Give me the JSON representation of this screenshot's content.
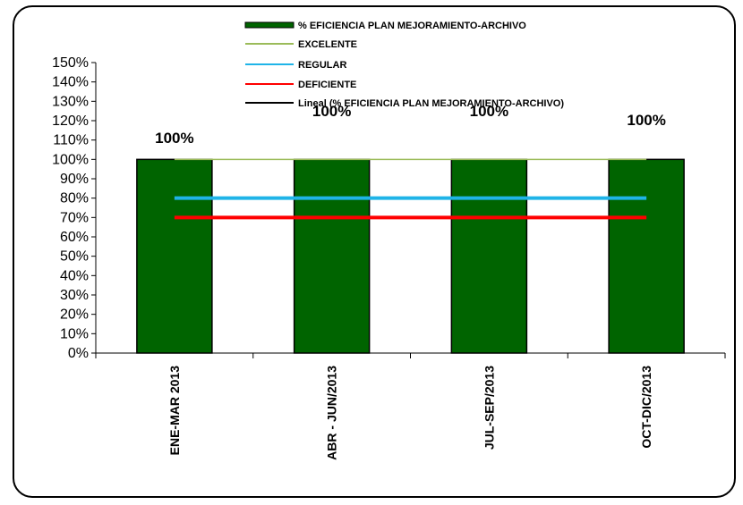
{
  "chart_data": {
    "type": "bar",
    "categories": [
      "ENE-MAR 2013",
      "ABR - JUN/2013",
      "JUL-SEP/2013",
      "OCT-DIC/2013"
    ],
    "series": [
      {
        "name": "% EFICIENCIA  PLAN MEJORAMIENTO-ARCHIVO",
        "kind": "bar",
        "values": [
          100,
          100,
          100,
          100
        ],
        "color": "#006400"
      },
      {
        "name": "EXCELENTE",
        "kind": "line",
        "values": [
          100,
          100,
          100,
          100
        ],
        "color": "#9bbb59"
      },
      {
        "name": "REGULAR",
        "kind": "line",
        "values": [
          80,
          80,
          80,
          80
        ],
        "color": "#1fb4e8"
      },
      {
        "name": "DEFICIENTE",
        "kind": "line",
        "values": [
          70,
          70,
          70,
          70
        ],
        "color": "#ff0000"
      },
      {
        "name": "Lineal (% EFICIENCIA  PLAN MEJORAMIENTO-ARCHIVO)",
        "kind": "trendline",
        "values": [
          100,
          100,
          100,
          100
        ],
        "color": "#000000"
      }
    ],
    "data_labels": [
      "100%",
      "100%",
      "100%",
      "100%"
    ],
    "y_ticks": [
      "0%",
      "10%",
      "20%",
      "30%",
      "40%",
      "50%",
      "60%",
      "70%",
      "80%",
      "90%",
      "100%",
      "110%",
      "120%",
      "130%",
      "140%",
      "150%"
    ],
    "ylim": [
      0,
      150
    ],
    "grid": false,
    "legend_position": "top-center"
  }
}
